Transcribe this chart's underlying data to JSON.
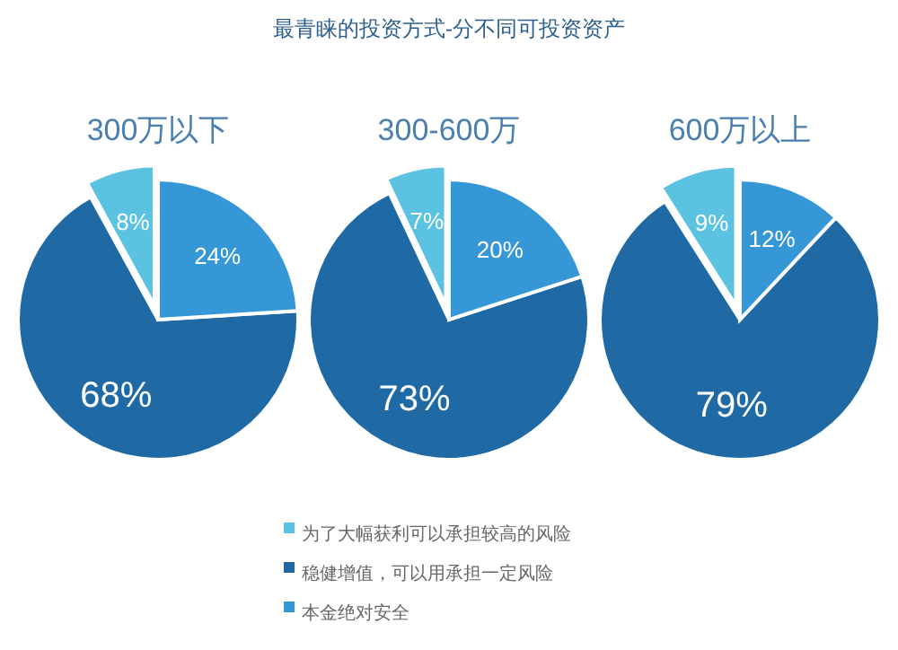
{
  "chart_data": [
    {
      "type": "pie",
      "subtitle": "300万以下",
      "categories": [
        null,
        null,
        null
      ],
      "values": [
        8,
        68,
        24
      ],
      "colors": [
        "#5bc2e1",
        "#1f6aa5",
        "#3597d6"
      ],
      "value_labels": [
        "8%",
        "68%",
        "24%"
      ]
    },
    {
      "type": "pie",
      "title": "最青睐的投资方式-分不同可投资资产",
      "subtitle": "300-600万",
      "categories": [
        "为了大幅获利可以承担较高的风险",
        "稳健增值，可以用承担一定风险",
        "本金绝对安全"
      ],
      "values": [
        7,
        73,
        20
      ],
      "colors": [
        "#5bc2e1",
        "#1f6aa5",
        "#3597d6"
      ],
      "value_labels": [
        "7%",
        "73%",
        "20%"
      ],
      "legend": "bottom"
    },
    {
      "type": "pie",
      "subtitle": "600万以上",
      "categories": [
        null,
        null,
        null
      ],
      "values": [
        9,
        79,
        12
      ],
      "colors": [
        "#5bc2e1",
        "#1f6aa5",
        "#3597d6"
      ],
      "value_labels": [
        "9%",
        "79%",
        "12%"
      ]
    }
  ]
}
